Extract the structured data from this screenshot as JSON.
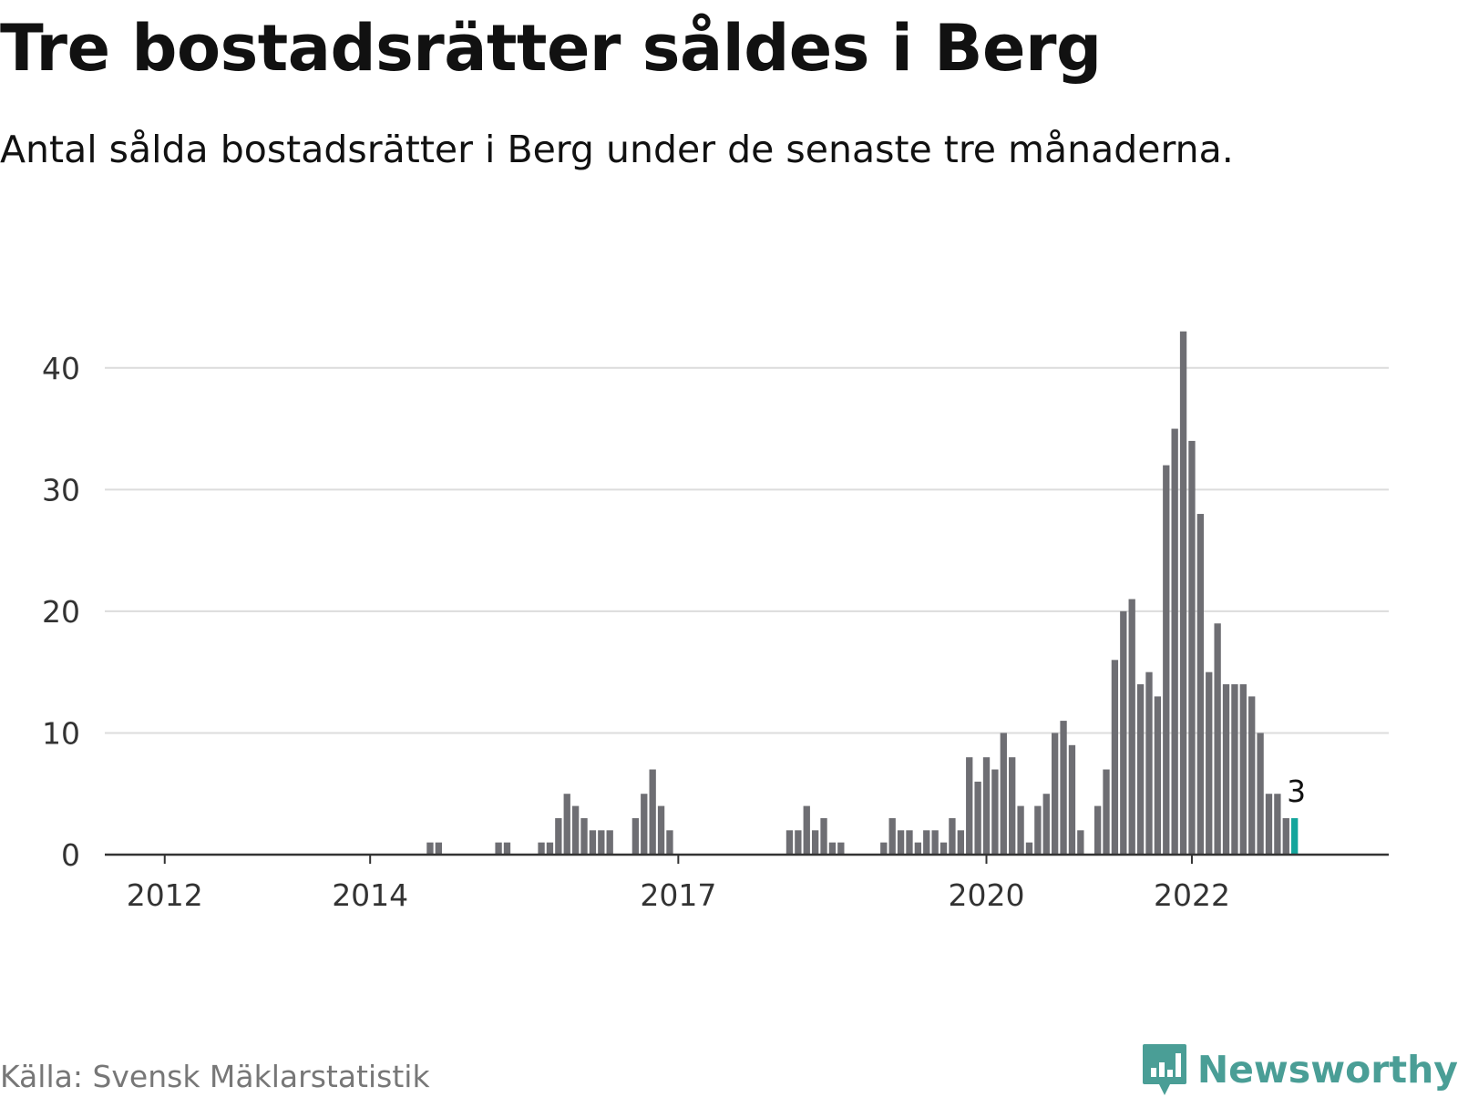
{
  "title": "Tre bostadsrätter såldes i Berg",
  "subtitle": "Antal sålda bostadsrätter i Berg under de senaste tre månaderna.",
  "source": "Källa: Svensk Mäklarstatistik",
  "brand": {
    "name": "Newsworthy",
    "icon": "newsworthy-logo-icon",
    "color": "#4a9e96"
  },
  "colors": {
    "bar": "#6e6e73",
    "highlight": "#14a59c",
    "grid": "#dcdcdc",
    "axis": "#333333"
  },
  "chart_data": {
    "type": "bar",
    "title": "Tre bostadsrätter såldes i Berg",
    "xlabel": "",
    "ylabel": "",
    "ylim": [
      0,
      45
    ],
    "yticks": [
      0,
      10,
      20,
      30,
      40
    ],
    "xlim": [
      "2011-06",
      "2023-12"
    ],
    "xticks": [
      {
        "label": "2012",
        "date": "2012-01"
      },
      {
        "label": "2014",
        "date": "2014-01"
      },
      {
        "label": "2017",
        "date": "2017-01"
      },
      {
        "label": "2020",
        "date": "2020-01"
      },
      {
        "label": "2022",
        "date": "2022-01"
      }
    ],
    "grid": true,
    "legend": "none",
    "annotation": {
      "text": "3",
      "date": "2023-04"
    },
    "bars": [
      {
        "date": "2014-08",
        "value": 1
      },
      {
        "date": "2014-09",
        "value": 1
      },
      {
        "date": "2015-04",
        "value": 1
      },
      {
        "date": "2015-05",
        "value": 1
      },
      {
        "date": "2015-09",
        "value": 1
      },
      {
        "date": "2015-10",
        "value": 1
      },
      {
        "date": "2015-11",
        "value": 3
      },
      {
        "date": "2015-12",
        "value": 5
      },
      {
        "date": "2016-01",
        "value": 4
      },
      {
        "date": "2016-02",
        "value": 3
      },
      {
        "date": "2016-03",
        "value": 2
      },
      {
        "date": "2016-04",
        "value": 2
      },
      {
        "date": "2016-05",
        "value": 2
      },
      {
        "date": "2016-08",
        "value": 3
      },
      {
        "date": "2016-09",
        "value": 5
      },
      {
        "date": "2016-10",
        "value": 7
      },
      {
        "date": "2016-11",
        "value": 4
      },
      {
        "date": "2016-12",
        "value": 2
      },
      {
        "date": "2018-02",
        "value": 2
      },
      {
        "date": "2018-03",
        "value": 2
      },
      {
        "date": "2018-04",
        "value": 4
      },
      {
        "date": "2018-05",
        "value": 2
      },
      {
        "date": "2018-06",
        "value": 3
      },
      {
        "date": "2018-07",
        "value": 1
      },
      {
        "date": "2018-08",
        "value": 1
      },
      {
        "date": "2019-01",
        "value": 1
      },
      {
        "date": "2019-02",
        "value": 3
      },
      {
        "date": "2019-03",
        "value": 2
      },
      {
        "date": "2019-04",
        "value": 2
      },
      {
        "date": "2019-05",
        "value": 1
      },
      {
        "date": "2019-06",
        "value": 2
      },
      {
        "date": "2019-07",
        "value": 2
      },
      {
        "date": "2019-08",
        "value": 1
      },
      {
        "date": "2019-09",
        "value": 3
      },
      {
        "date": "2019-10",
        "value": 2
      },
      {
        "date": "2019-11",
        "value": 8
      },
      {
        "date": "2019-12",
        "value": 6
      },
      {
        "date": "2020-01",
        "value": 8
      },
      {
        "date": "2020-02",
        "value": 7
      },
      {
        "date": "2020-03",
        "value": 10
      },
      {
        "date": "2020-04",
        "value": 8
      },
      {
        "date": "2020-05",
        "value": 4
      },
      {
        "date": "2020-06",
        "value": 1
      },
      {
        "date": "2020-07",
        "value": 4
      },
      {
        "date": "2020-08",
        "value": 5
      },
      {
        "date": "2020-09",
        "value": 10
      },
      {
        "date": "2020-10",
        "value": 11
      },
      {
        "date": "2020-11",
        "value": 9
      },
      {
        "date": "2020-12",
        "value": 2
      },
      {
        "date": "2021-02",
        "value": 4
      },
      {
        "date": "2021-03",
        "value": 7
      },
      {
        "date": "2021-04",
        "value": 16
      },
      {
        "date": "2021-05",
        "value": 20
      },
      {
        "date": "2021-06",
        "value": 21
      },
      {
        "date": "2021-07",
        "value": 14
      },
      {
        "date": "2021-08",
        "value": 15
      },
      {
        "date": "2021-09",
        "value": 13
      },
      {
        "date": "2021-10",
        "value": 32
      },
      {
        "date": "2021-11",
        "value": 35
      },
      {
        "date": "2021-12",
        "value": 43
      },
      {
        "date": "2022-01",
        "value": 34
      },
      {
        "date": "2022-02",
        "value": 28
      },
      {
        "date": "2022-03",
        "value": 15
      },
      {
        "date": "2022-04",
        "value": 19
      },
      {
        "date": "2022-05",
        "value": 14
      },
      {
        "date": "2022-06",
        "value": 14
      },
      {
        "date": "2022-07",
        "value": 14
      },
      {
        "date": "2022-08",
        "value": 13
      },
      {
        "date": "2022-09",
        "value": 10
      },
      {
        "date": "2022-10",
        "value": 5
      },
      {
        "date": "2022-11",
        "value": 5
      },
      {
        "date": "2022-12",
        "value": 3
      },
      {
        "date": "2023-01",
        "value": 3,
        "highlight": true
      }
    ]
  }
}
